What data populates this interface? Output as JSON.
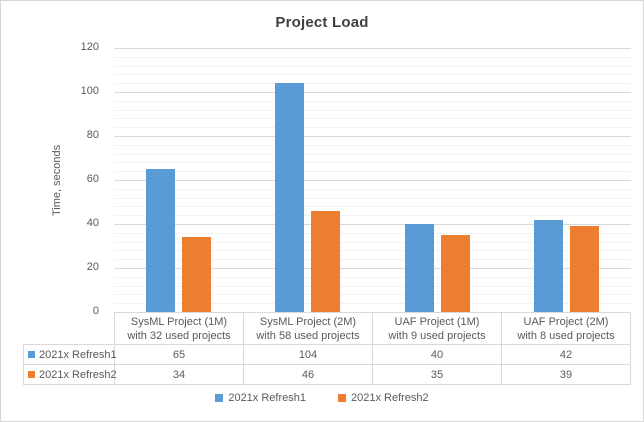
{
  "chart_data": {
    "type": "bar",
    "title": "Project Load",
    "xlabel": "",
    "ylabel": "Time, seconds",
    "ylim": [
      0,
      120
    ],
    "ymajor_step": 20,
    "yminor_step": 4,
    "yticks": [
      0,
      20,
      40,
      60,
      80,
      100,
      120
    ],
    "grid": "horizontal major and minor gridlines",
    "legend_position": "bottom",
    "data_table_shown": true,
    "categories": [
      [
        "SysML Project (1M)",
        "with 32 used projects"
      ],
      [
        "SysML Project (2M)",
        "with 58 used projects"
      ],
      [
        "UAF Project (1M)",
        "with 9 used projects"
      ],
      [
        "UAF Project (2M)",
        "with 8 used projects"
      ]
    ],
    "series": [
      {
        "name": "2021x Refresh1",
        "color": "#5B9BD5",
        "values": [
          65,
          104,
          40,
          42
        ]
      },
      {
        "name": "2021x Refresh2",
        "color": "#ED7D31",
        "values": [
          34,
          46,
          35,
          39
        ]
      }
    ]
  },
  "colors": {
    "series1": "#5B9BD5",
    "series2": "#ED7D31",
    "axis_text": "#595959",
    "title_text": "#404040",
    "major_gridline": "#D9D9D9",
    "minor_gridline": "#F2F2F2",
    "table_border": "#D9D9D9",
    "chart_border": "#D6D6D6",
    "background": "#FFFFFF"
  }
}
